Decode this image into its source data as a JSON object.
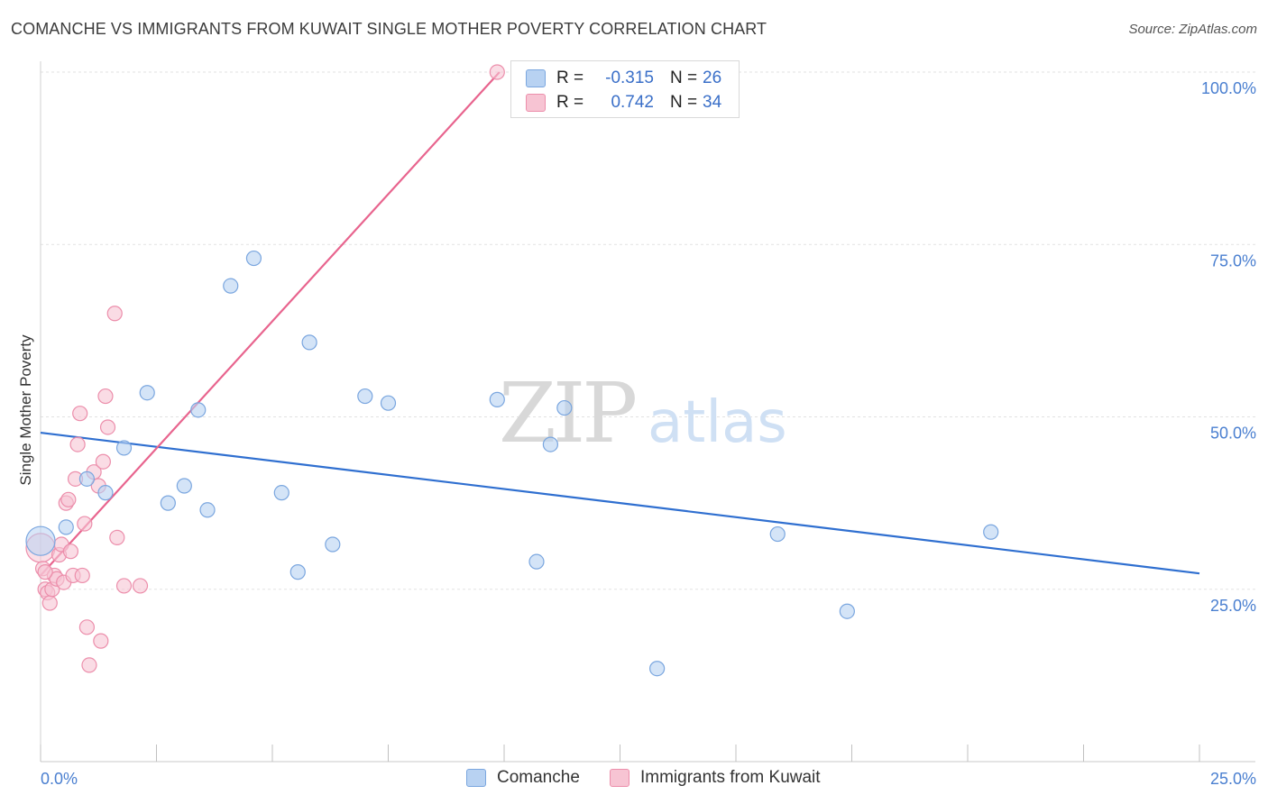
{
  "title": "COMANCHE VS IMMIGRANTS FROM KUWAIT SINGLE MOTHER POVERTY CORRELATION CHART",
  "source": "Source: ZipAtlas.com",
  "watermark": {
    "zip": "ZIP",
    "atlas": "atlas"
  },
  "legend": {
    "series1": {
      "r_label": "R =",
      "r_value": "-0.315",
      "n_label": "N =",
      "n_value": "26"
    },
    "series2": {
      "r_label": "R =",
      "r_value": "0.742",
      "n_label": "N =",
      "n_value": "34"
    }
  },
  "colors": {
    "comanche_fill": "#b8d2f2",
    "comanche_stroke": "#7aa6df",
    "comanche_line": "#2f6fd0",
    "kuwait_fill": "#f7c4d3",
    "kuwait_stroke": "#ec8eab",
    "kuwait_line": "#e8648e",
    "grid": "#e2e2e2",
    "axis_text": "#4a7fd0"
  },
  "chart_data": {
    "type": "scatter",
    "title": "COMANCHE VS IMMIGRANTS FROM KUWAIT SINGLE MOTHER POVERTY CORRELATION CHART",
    "xlabel": "",
    "ylabel": "Single Mother Poverty",
    "xlim": [
      0,
      25
    ],
    "ylim": [
      0,
      100
    ],
    "x_ticks": [
      "0.0%",
      "25.0%"
    ],
    "y_ticks": [
      {
        "value": 25,
        "label": "25.0%"
      },
      {
        "value": 50,
        "label": "50.0%"
      },
      {
        "value": 75,
        "label": "75.0%"
      },
      {
        "value": 100,
        "label": "100.0%"
      }
    ],
    "series": [
      {
        "name": "Comanche",
        "r": -0.315,
        "n": 26,
        "trend": {
          "x": [
            0,
            25
          ],
          "y": [
            47.7,
            27.3
          ]
        },
        "points": [
          {
            "x": 0.0,
            "y": 32.0,
            "large": true
          },
          {
            "x": 0.55,
            "y": 34.0
          },
          {
            "x": 1.0,
            "y": 41.0
          },
          {
            "x": 1.4,
            "y": 39.0
          },
          {
            "x": 1.8,
            "y": 45.5
          },
          {
            "x": 2.3,
            "y": 53.5
          },
          {
            "x": 2.75,
            "y": 37.5
          },
          {
            "x": 3.1,
            "y": 40.0
          },
          {
            "x": 3.4,
            "y": 51.0
          },
          {
            "x": 3.6,
            "y": 36.5
          },
          {
            "x": 4.1,
            "y": 69.0
          },
          {
            "x": 4.6,
            "y": 73.0
          },
          {
            "x": 5.2,
            "y": 39.0
          },
          {
            "x": 5.55,
            "y": 27.5
          },
          {
            "x": 5.8,
            "y": 60.8
          },
          {
            "x": 6.3,
            "y": 31.5
          },
          {
            "x": 7.0,
            "y": 53.0
          },
          {
            "x": 7.5,
            "y": 52.0
          },
          {
            "x": 9.85,
            "y": 52.5
          },
          {
            "x": 10.7,
            "y": 29.0
          },
          {
            "x": 11.0,
            "y": 46.0
          },
          {
            "x": 11.3,
            "y": 51.3
          },
          {
            "x": 13.3,
            "y": 13.5
          },
          {
            "x": 15.9,
            "y": 33.0
          },
          {
            "x": 17.4,
            "y": 21.8
          },
          {
            "x": 20.5,
            "y": 33.3
          }
        ]
      },
      {
        "name": "Immigrants from Kuwait",
        "r": 0.742,
        "n": 34,
        "trend": {
          "x": [
            0,
            9.9
          ],
          "y": [
            27.0,
            100.0
          ]
        },
        "points": [
          {
            "x": 0.0,
            "y": 31.0,
            "large": true
          },
          {
            "x": 0.05,
            "y": 28.0
          },
          {
            "x": 0.1,
            "y": 25.0
          },
          {
            "x": 0.15,
            "y": 24.5
          },
          {
            "x": 0.2,
            "y": 23.0
          },
          {
            "x": 0.25,
            "y": 25.0
          },
          {
            "x": 0.3,
            "y": 27.0
          },
          {
            "x": 0.35,
            "y": 26.5
          },
          {
            "x": 0.4,
            "y": 30.0
          },
          {
            "x": 0.45,
            "y": 31.5
          },
          {
            "x": 0.5,
            "y": 26.0
          },
          {
            "x": 0.55,
            "y": 37.5
          },
          {
            "x": 0.6,
            "y": 38.0
          },
          {
            "x": 0.65,
            "y": 30.5
          },
          {
            "x": 0.7,
            "y": 27.0
          },
          {
            "x": 0.75,
            "y": 41.0
          },
          {
            "x": 0.8,
            "y": 46.0
          },
          {
            "x": 0.85,
            "y": 50.5
          },
          {
            "x": 0.9,
            "y": 27.0
          },
          {
            "x": 0.95,
            "y": 34.5
          },
          {
            "x": 1.0,
            "y": 19.5
          },
          {
            "x": 1.05,
            "y": 14.0
          },
          {
            "x": 1.15,
            "y": 42.0
          },
          {
            "x": 1.25,
            "y": 40.0
          },
          {
            "x": 1.3,
            "y": 17.5
          },
          {
            "x": 1.35,
            "y": 43.5
          },
          {
            "x": 1.4,
            "y": 53.0
          },
          {
            "x": 1.45,
            "y": 48.5
          },
          {
            "x": 1.6,
            "y": 65.0
          },
          {
            "x": 1.65,
            "y": 32.5
          },
          {
            "x": 1.8,
            "y": 25.5
          },
          {
            "x": 2.15,
            "y": 25.5
          },
          {
            "x": 0.1,
            "y": 27.5
          },
          {
            "x": 9.85,
            "y": 100.0
          }
        ]
      }
    ]
  },
  "bottom_legend": [
    {
      "label": "Comanche"
    },
    {
      "label": "Immigrants from Kuwait"
    }
  ]
}
